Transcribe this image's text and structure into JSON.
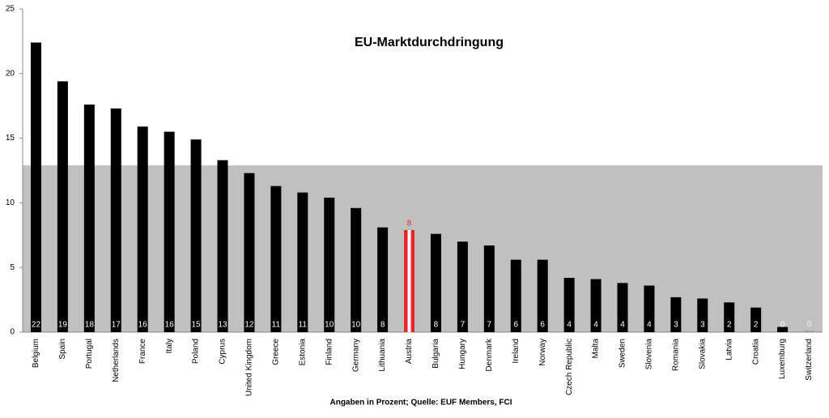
{
  "chart_data": {
    "type": "bar",
    "title": "EU-Marktdurchdringung",
    "x_label": "Angaben in Prozent; Quelle: EUF Members, FCI",
    "categories": [
      "Belgium",
      "Spain",
      "Portugal",
      "Netherlands",
      "France",
      "Italy",
      "Poland",
      "Cyprus",
      "United Kingdom",
      "Greece",
      "Estonia",
      "Finland",
      "Germany",
      "Lithuania",
      "Austria",
      "Bulgaria",
      "Hungary",
      "Denmark",
      "Ireland",
      "Norway",
      "Czech Republic",
      "Malta",
      "Sweden",
      "Slovenia",
      "Romania",
      "Slovakia",
      "Latvia",
      "Croatia",
      "Luxemburg",
      "Switzerland"
    ],
    "values": [
      22.4,
      19.4,
      17.6,
      17.3,
      15.9,
      15.5,
      14.9,
      13.3,
      12.3,
      11.3,
      10.8,
      10.4,
      9.6,
      8.1,
      7.9,
      7.6,
      7.0,
      6.7,
      5.6,
      5.6,
      4.2,
      4.1,
      3.8,
      3.6,
      2.7,
      2.6,
      2.3,
      1.9,
      0.4,
      0.1
    ],
    "value_labels": [
      "22",
      "19",
      "18",
      "17",
      "16",
      "16",
      "15",
      "13",
      "12",
      "11",
      "11",
      "10",
      "10",
      "8",
      "8",
      "8",
      "7",
      "7",
      "6",
      "6",
      "4",
      "4",
      "4",
      "4",
      "3",
      "3",
      "2",
      "2",
      "0",
      "0"
    ],
    "colors": [
      "#000000",
      "#000000",
      "#000000",
      "#000000",
      "#000000",
      "#000000",
      "#000000",
      "#000000",
      "#000000",
      "#000000",
      "#000000",
      "#000000",
      "#000000",
      "#000000",
      "#e8262b",
      "#000000",
      "#000000",
      "#000000",
      "#000000",
      "#000000",
      "#000000",
      "#000000",
      "#000000",
      "#000000",
      "#000000",
      "#000000",
      "#000000",
      "#000000",
      "#000000",
      "#999999"
    ],
    "band": 12.9,
    "band_color": "#c0c0c0",
    "ylim": [
      0,
      25
    ],
    "yticks": [
      0,
      5,
      10,
      15,
      20,
      25
    ]
  }
}
